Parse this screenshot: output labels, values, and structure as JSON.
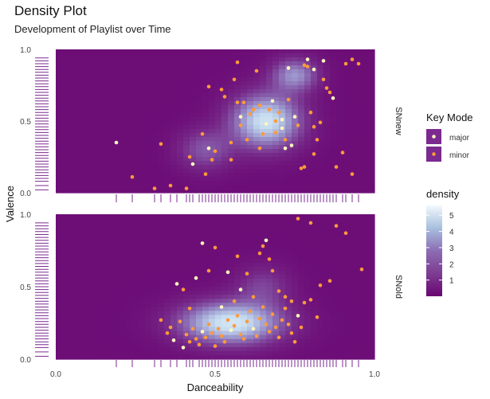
{
  "chart_data": {
    "type": "scatter",
    "title": "Density Plot",
    "subtitle": "Development of Playlist over Time",
    "xlabel": "Danceability",
    "ylabel": "Valence",
    "xlim": [
      0,
      1
    ],
    "ylim": [
      0,
      1
    ],
    "x_ticks": [
      "0.0",
      "0.5",
      "1.0"
    ],
    "y_ticks": [
      "0.0",
      "0.5",
      "1.0"
    ],
    "colors": {
      "major": "#fff7bc",
      "minor": "#fd9a3c",
      "density_low": "#6a0572",
      "density_high": "#f2f8fd",
      "rug": "#7b2a90"
    },
    "legend": {
      "position": "right",
      "key_mode_title": "Key Mode",
      "key_mode_items": [
        "major",
        "minor"
      ],
      "density_title": "density",
      "density_ticks": [
        "1",
        "2",
        "3",
        "4",
        "5"
      ],
      "density_range": [
        0,
        5.6
      ]
    },
    "panels": [
      {
        "label": "SNnew",
        "density_peaks": [
          {
            "x": 0.66,
            "y": 0.5,
            "sx": 0.075,
            "sy": 0.13,
            "w": 4.2
          },
          {
            "x": 0.75,
            "y": 0.82,
            "sx": 0.05,
            "sy": 0.08,
            "w": 2.6
          },
          {
            "x": 0.47,
            "y": 0.3,
            "sx": 0.06,
            "sy": 0.1,
            "w": 1.6
          }
        ],
        "points": [
          {
            "x": 0.19,
            "y": 0.35,
            "m": "major"
          },
          {
            "x": 0.24,
            "y": 0.11,
            "m": "minor"
          },
          {
            "x": 0.31,
            "y": 0.03,
            "m": "minor"
          },
          {
            "x": 0.33,
            "y": 0.34,
            "m": "minor"
          },
          {
            "x": 0.36,
            "y": 0.05,
            "m": "minor"
          },
          {
            "x": 0.41,
            "y": 0.03,
            "m": "minor"
          },
          {
            "x": 0.42,
            "y": 0.25,
            "m": "minor"
          },
          {
            "x": 0.43,
            "y": 0.2,
            "m": "major"
          },
          {
            "x": 0.47,
            "y": 0.13,
            "m": "minor"
          },
          {
            "x": 0.46,
            "y": 0.41,
            "m": "minor"
          },
          {
            "x": 0.48,
            "y": 0.31,
            "m": "major"
          },
          {
            "x": 0.49,
            "y": 0.23,
            "m": "minor"
          },
          {
            "x": 0.5,
            "y": 0.29,
            "m": "minor"
          },
          {
            "x": 0.55,
            "y": 0.23,
            "m": "minor"
          },
          {
            "x": 0.55,
            "y": 0.35,
            "m": "minor"
          },
          {
            "x": 0.52,
            "y": 0.72,
            "m": "minor"
          },
          {
            "x": 0.48,
            "y": 0.74,
            "m": "minor"
          },
          {
            "x": 0.53,
            "y": 0.67,
            "m": "minor"
          },
          {
            "x": 0.56,
            "y": 0.79,
            "m": "minor"
          },
          {
            "x": 0.57,
            "y": 0.63,
            "m": "minor"
          },
          {
            "x": 0.58,
            "y": 0.47,
            "m": "minor"
          },
          {
            "x": 0.58,
            "y": 0.53,
            "m": "major"
          },
          {
            "x": 0.59,
            "y": 0.63,
            "m": "minor"
          },
          {
            "x": 0.6,
            "y": 0.37,
            "m": "minor"
          },
          {
            "x": 0.61,
            "y": 0.55,
            "m": "minor"
          },
          {
            "x": 0.62,
            "y": 0.58,
            "m": "minor"
          },
          {
            "x": 0.57,
            "y": 0.91,
            "m": "minor"
          },
          {
            "x": 0.64,
            "y": 0.61,
            "m": "minor"
          },
          {
            "x": 0.65,
            "y": 0.41,
            "m": "minor"
          },
          {
            "x": 0.66,
            "y": 0.48,
            "m": "major"
          },
          {
            "x": 0.67,
            "y": 0.58,
            "m": "minor"
          },
          {
            "x": 0.68,
            "y": 0.64,
            "m": "major"
          },
          {
            "x": 0.69,
            "y": 0.5,
            "m": "minor"
          },
          {
            "x": 0.69,
            "y": 0.42,
            "m": "minor"
          },
          {
            "x": 0.7,
            "y": 0.56,
            "m": "minor"
          },
          {
            "x": 0.71,
            "y": 0.51,
            "m": "major"
          },
          {
            "x": 0.71,
            "y": 0.45,
            "m": "major"
          },
          {
            "x": 0.72,
            "y": 0.37,
            "m": "minor"
          },
          {
            "x": 0.72,
            "y": 0.31,
            "m": "major"
          },
          {
            "x": 0.73,
            "y": 0.87,
            "m": "major"
          },
          {
            "x": 0.73,
            "y": 0.65,
            "m": "minor"
          },
          {
            "x": 0.74,
            "y": 0.33,
            "m": "major"
          },
          {
            "x": 0.75,
            "y": 0.53,
            "m": "major"
          },
          {
            "x": 0.76,
            "y": 0.47,
            "m": "minor"
          },
          {
            "x": 0.77,
            "y": 0.17,
            "m": "minor"
          },
          {
            "x": 0.78,
            "y": 0.89,
            "m": "minor"
          },
          {
            "x": 0.79,
            "y": 0.88,
            "m": "minor"
          },
          {
            "x": 0.8,
            "y": 0.56,
            "m": "minor"
          },
          {
            "x": 0.81,
            "y": 0.27,
            "m": "minor"
          },
          {
            "x": 0.81,
            "y": 0.46,
            "m": "minor"
          },
          {
            "x": 0.82,
            "y": 0.37,
            "m": "minor"
          },
          {
            "x": 0.83,
            "y": 0.49,
            "m": "minor"
          },
          {
            "x": 0.84,
            "y": 0.79,
            "m": "minor"
          },
          {
            "x": 0.85,
            "y": 0.73,
            "m": "minor"
          },
          {
            "x": 0.86,
            "y": 0.7,
            "m": "minor"
          },
          {
            "x": 0.87,
            "y": 0.66,
            "m": "major"
          },
          {
            "x": 0.79,
            "y": 0.93,
            "m": "major"
          },
          {
            "x": 0.81,
            "y": 0.86,
            "m": "major"
          },
          {
            "x": 0.84,
            "y": 0.92,
            "m": "major"
          },
          {
            "x": 0.9,
            "y": 0.28,
            "m": "minor"
          },
          {
            "x": 0.91,
            "y": 0.9,
            "m": "minor"
          },
          {
            "x": 0.93,
            "y": 0.93,
            "m": "minor"
          },
          {
            "x": 0.95,
            "y": 0.9,
            "m": "minor"
          },
          {
            "x": 0.64,
            "y": 0.31,
            "m": "minor"
          },
          {
            "x": 0.63,
            "y": 0.85,
            "m": "minor"
          },
          {
            "x": 0.88,
            "y": 0.18,
            "m": "minor"
          },
          {
            "x": 0.93,
            "y": 0.13,
            "m": "minor"
          },
          {
            "x": 0.78,
            "y": 0.18,
            "m": "minor"
          }
        ]
      },
      {
        "label": "SNold",
        "density_peaks": [
          {
            "x": 0.55,
            "y": 0.25,
            "sx": 0.11,
            "sy": 0.1,
            "w": 4.4
          },
          {
            "x": 0.65,
            "y": 0.5,
            "sx": 0.06,
            "sy": 0.1,
            "w": 1.2
          }
        ],
        "points": [
          {
            "x": 0.35,
            "y": 0.18,
            "m": "minor"
          },
          {
            "x": 0.36,
            "y": 0.22,
            "m": "minor"
          },
          {
            "x": 0.37,
            "y": 0.13,
            "m": "major"
          },
          {
            "x": 0.39,
            "y": 0.26,
            "m": "minor"
          },
          {
            "x": 0.4,
            "y": 0.08,
            "m": "major"
          },
          {
            "x": 0.41,
            "y": 0.17,
            "m": "minor"
          },
          {
            "x": 0.42,
            "y": 0.12,
            "m": "minor"
          },
          {
            "x": 0.43,
            "y": 0.21,
            "m": "minor"
          },
          {
            "x": 0.44,
            "y": 0.14,
            "m": "minor"
          },
          {
            "x": 0.45,
            "y": 0.1,
            "m": "minor"
          },
          {
            "x": 0.46,
            "y": 0.19,
            "m": "major"
          },
          {
            "x": 0.47,
            "y": 0.15,
            "m": "minor"
          },
          {
            "x": 0.48,
            "y": 0.24,
            "m": "minor"
          },
          {
            "x": 0.49,
            "y": 0.18,
            "m": "minor"
          },
          {
            "x": 0.5,
            "y": 0.09,
            "m": "minor"
          },
          {
            "x": 0.51,
            "y": 0.21,
            "m": "minor"
          },
          {
            "x": 0.52,
            "y": 0.16,
            "m": "minor"
          },
          {
            "x": 0.53,
            "y": 0.12,
            "m": "minor"
          },
          {
            "x": 0.54,
            "y": 0.27,
            "m": "minor"
          },
          {
            "x": 0.55,
            "y": 0.2,
            "m": "major"
          },
          {
            "x": 0.56,
            "y": 0.23,
            "m": "minor"
          },
          {
            "x": 0.57,
            "y": 0.3,
            "m": "minor"
          },
          {
            "x": 0.58,
            "y": 0.17,
            "m": "minor"
          },
          {
            "x": 0.59,
            "y": 0.14,
            "m": "minor"
          },
          {
            "x": 0.6,
            "y": 0.26,
            "m": "minor"
          },
          {
            "x": 0.61,
            "y": 0.33,
            "m": "minor"
          },
          {
            "x": 0.62,
            "y": 0.21,
            "m": "major"
          },
          {
            "x": 0.63,
            "y": 0.16,
            "m": "minor"
          },
          {
            "x": 0.64,
            "y": 0.28,
            "m": "minor"
          },
          {
            "x": 0.65,
            "y": 0.36,
            "m": "minor"
          },
          {
            "x": 0.66,
            "y": 0.24,
            "m": "minor"
          },
          {
            "x": 0.67,
            "y": 0.19,
            "m": "minor"
          },
          {
            "x": 0.68,
            "y": 0.31,
            "m": "minor"
          },
          {
            "x": 0.69,
            "y": 0.22,
            "m": "minor"
          },
          {
            "x": 0.7,
            "y": 0.15,
            "m": "minor"
          },
          {
            "x": 0.71,
            "y": 0.27,
            "m": "minor"
          },
          {
            "x": 0.72,
            "y": 0.35,
            "m": "minor"
          },
          {
            "x": 0.73,
            "y": 0.24,
            "m": "minor"
          },
          {
            "x": 0.74,
            "y": 0.18,
            "m": "minor"
          },
          {
            "x": 0.75,
            "y": 0.12,
            "m": "minor"
          },
          {
            "x": 0.76,
            "y": 0.3,
            "m": "major"
          },
          {
            "x": 0.77,
            "y": 0.22,
            "m": "minor"
          },
          {
            "x": 0.78,
            "y": 0.39,
            "m": "minor"
          },
          {
            "x": 0.52,
            "y": 0.36,
            "m": "major"
          },
          {
            "x": 0.56,
            "y": 0.4,
            "m": "minor"
          },
          {
            "x": 0.58,
            "y": 0.48,
            "m": "major"
          },
          {
            "x": 0.6,
            "y": 0.59,
            "m": "minor"
          },
          {
            "x": 0.62,
            "y": 0.43,
            "m": "minor"
          },
          {
            "x": 0.64,
            "y": 0.73,
            "m": "minor"
          },
          {
            "x": 0.65,
            "y": 0.78,
            "m": "minor"
          },
          {
            "x": 0.66,
            "y": 0.82,
            "m": "major"
          },
          {
            "x": 0.67,
            "y": 0.69,
            "m": "minor"
          },
          {
            "x": 0.68,
            "y": 0.61,
            "m": "minor"
          },
          {
            "x": 0.7,
            "y": 0.47,
            "m": "minor"
          },
          {
            "x": 0.72,
            "y": 0.43,
            "m": "minor"
          },
          {
            "x": 0.74,
            "y": 0.4,
            "m": "minor"
          },
          {
            "x": 0.76,
            "y": 0.97,
            "m": "minor"
          },
          {
            "x": 0.8,
            "y": 0.94,
            "m": "minor"
          },
          {
            "x": 0.83,
            "y": 0.51,
            "m": "minor"
          },
          {
            "x": 0.86,
            "y": 0.54,
            "m": "minor"
          },
          {
            "x": 0.88,
            "y": 0.92,
            "m": "minor"
          },
          {
            "x": 0.91,
            "y": 0.87,
            "m": "minor"
          },
          {
            "x": 0.96,
            "y": 0.62,
            "m": "minor"
          },
          {
            "x": 0.46,
            "y": 0.8,
            "m": "major"
          },
          {
            "x": 0.5,
            "y": 0.77,
            "m": "minor"
          },
          {
            "x": 0.48,
            "y": 0.61,
            "m": "minor"
          },
          {
            "x": 0.44,
            "y": 0.56,
            "m": "major"
          },
          {
            "x": 0.38,
            "y": 0.52,
            "m": "major"
          },
          {
            "x": 0.42,
            "y": 0.35,
            "m": "minor"
          },
          {
            "x": 0.33,
            "y": 0.27,
            "m": "minor"
          },
          {
            "x": 0.4,
            "y": 0.48,
            "m": "minor"
          },
          {
            "x": 0.57,
            "y": 0.71,
            "m": "minor"
          },
          {
            "x": 0.8,
            "y": 0.41,
            "m": "minor"
          },
          {
            "x": 0.82,
            "y": 0.29,
            "m": "minor"
          },
          {
            "x": 0.54,
            "y": 0.6,
            "m": "major"
          }
        ]
      }
    ],
    "rug_x": [
      0.19,
      0.24,
      0.31,
      0.33,
      0.36,
      0.38,
      0.41,
      0.42,
      0.43,
      0.45,
      0.46,
      0.47,
      0.48,
      0.49,
      0.5,
      0.51,
      0.52,
      0.53,
      0.54,
      0.55,
      0.56,
      0.57,
      0.58,
      0.59,
      0.6,
      0.61,
      0.62,
      0.63,
      0.64,
      0.65,
      0.66,
      0.67,
      0.68,
      0.69,
      0.7,
      0.71,
      0.72,
      0.73,
      0.74,
      0.75,
      0.76,
      0.77,
      0.78,
      0.79,
      0.8,
      0.81,
      0.82,
      0.83,
      0.84,
      0.85,
      0.86,
      0.87,
      0.88,
      0.9,
      0.91,
      0.93,
      0.95
    ],
    "rug_y": [
      0.02,
      0.05,
      0.08,
      0.1,
      0.12,
      0.14,
      0.16,
      0.18,
      0.2,
      0.22,
      0.24,
      0.26,
      0.28,
      0.3,
      0.32,
      0.34,
      0.36,
      0.38,
      0.4,
      0.42,
      0.44,
      0.46,
      0.48,
      0.5,
      0.52,
      0.54,
      0.56,
      0.58,
      0.6,
      0.62,
      0.64,
      0.66,
      0.68,
      0.7,
      0.72,
      0.74,
      0.76,
      0.78,
      0.8,
      0.82,
      0.84,
      0.86,
      0.88,
      0.9,
      0.92,
      0.94
    ]
  }
}
